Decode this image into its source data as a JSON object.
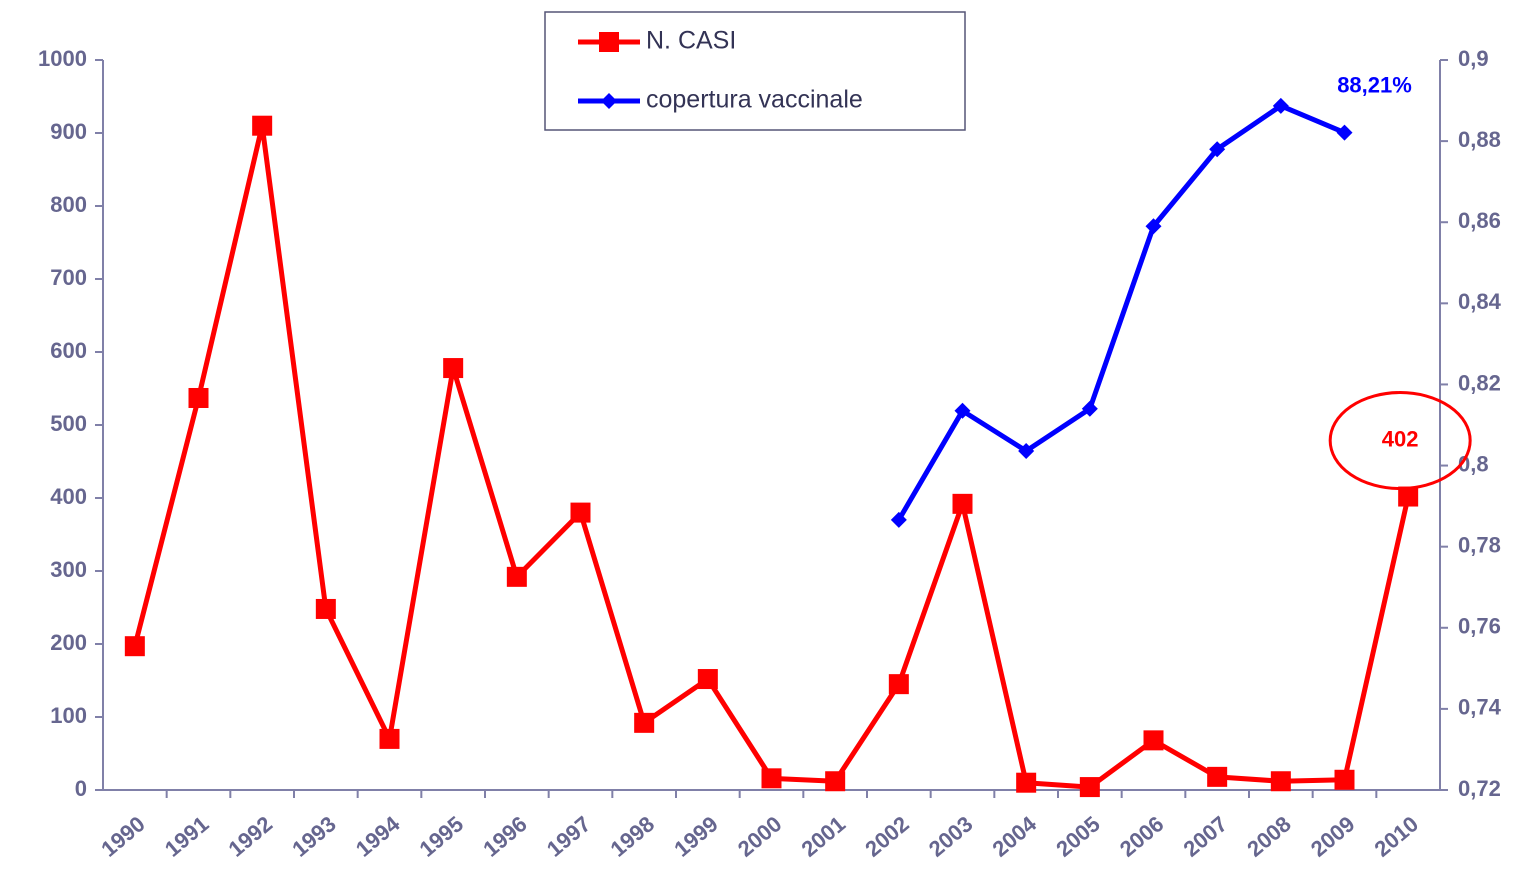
{
  "chart_data": {
    "type": "line",
    "categories": [
      "1990",
      "1991",
      "1992",
      "1993",
      "1994",
      "1995",
      "1996",
      "1997",
      "1998",
      "1999",
      "2000",
      "2001",
      "2002",
      "2003",
      "2004",
      "2005",
      "2006",
      "2007",
      "2008",
      "2009",
      "2010"
    ],
    "series": [
      {
        "name": "N. CASI",
        "color": "#ff0000",
        "marker": "square",
        "values": [
          197,
          537,
          910,
          248,
          70,
          578,
          292,
          380,
          92,
          152,
          16,
          12,
          145,
          392,
          10,
          4,
          68,
          18,
          12,
          14,
          402
        ]
      },
      {
        "name": "copertura vaccinale",
        "color": "#0000ff",
        "marker": "diamond",
        "axis": "y2",
        "values": [
          null,
          null,
          null,
          null,
          null,
          null,
          null,
          null,
          null,
          null,
          null,
          null,
          0.7866,
          0.8135,
          0.8036,
          0.814,
          0.859,
          0.878,
          0.8887,
          0.8821,
          null
        ],
        "value_labels": [
          null,
          null,
          null,
          null,
          null,
          null,
          null,
          null,
          null,
          null,
          null,
          null,
          null,
          null,
          null,
          null,
          null,
          null,
          null,
          "88,21%",
          null
        ]
      }
    ],
    "ylim": [
      0,
      1000
    ],
    "yticks": [
      0,
      100,
      200,
      300,
      400,
      500,
      600,
      700,
      800,
      900,
      1000
    ],
    "y2lim": [
      0.72,
      0.9
    ],
    "y2ticks": [
      {
        "value": 0.72,
        "label": "0,72"
      },
      {
        "value": 0.74,
        "label": "0,74"
      },
      {
        "value": 0.76,
        "label": "0,76"
      },
      {
        "value": 0.78,
        "label": "0,78"
      },
      {
        "value": 0.8,
        "label": "0,8"
      },
      {
        "value": 0.82,
        "label": "0,82"
      },
      {
        "value": 0.84,
        "label": "0,84"
      },
      {
        "value": 0.86,
        "label": "0,86"
      },
      {
        "value": 0.88,
        "label": "0,88"
      },
      {
        "value": 0.9,
        "label": "0,9"
      }
    ],
    "highlight_label": 20
  }
}
